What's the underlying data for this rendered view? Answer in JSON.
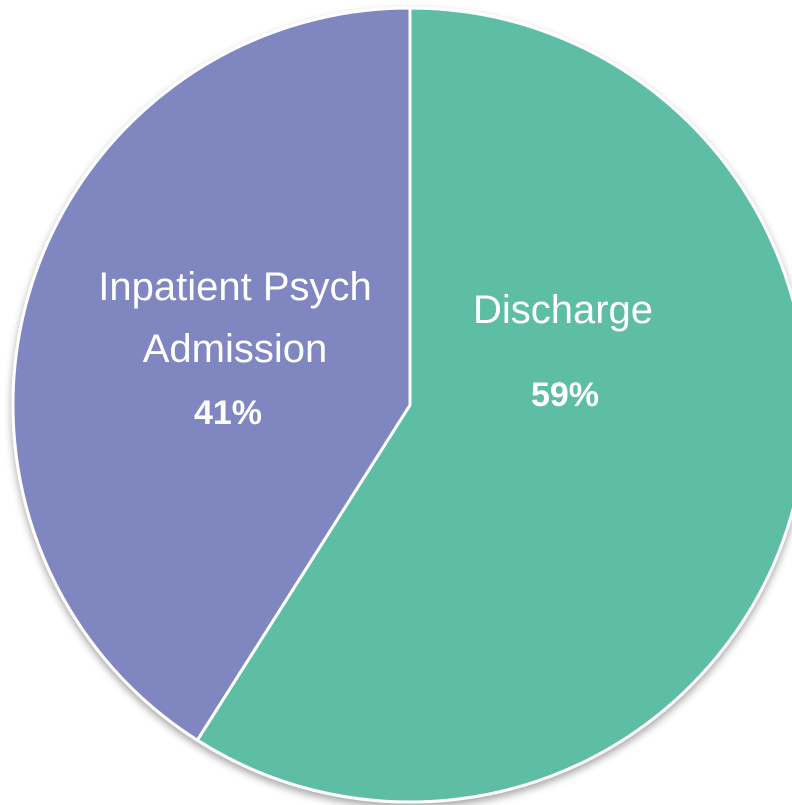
{
  "chart_data": {
    "type": "pie",
    "categories": [
      "Discharge",
      "Inpatient Psych Admission"
    ],
    "values": [
      59,
      41
    ],
    "value_labels": [
      "59%",
      "41%"
    ],
    "colors": [
      "#5dbea5",
      "#7f86c0"
    ]
  }
}
